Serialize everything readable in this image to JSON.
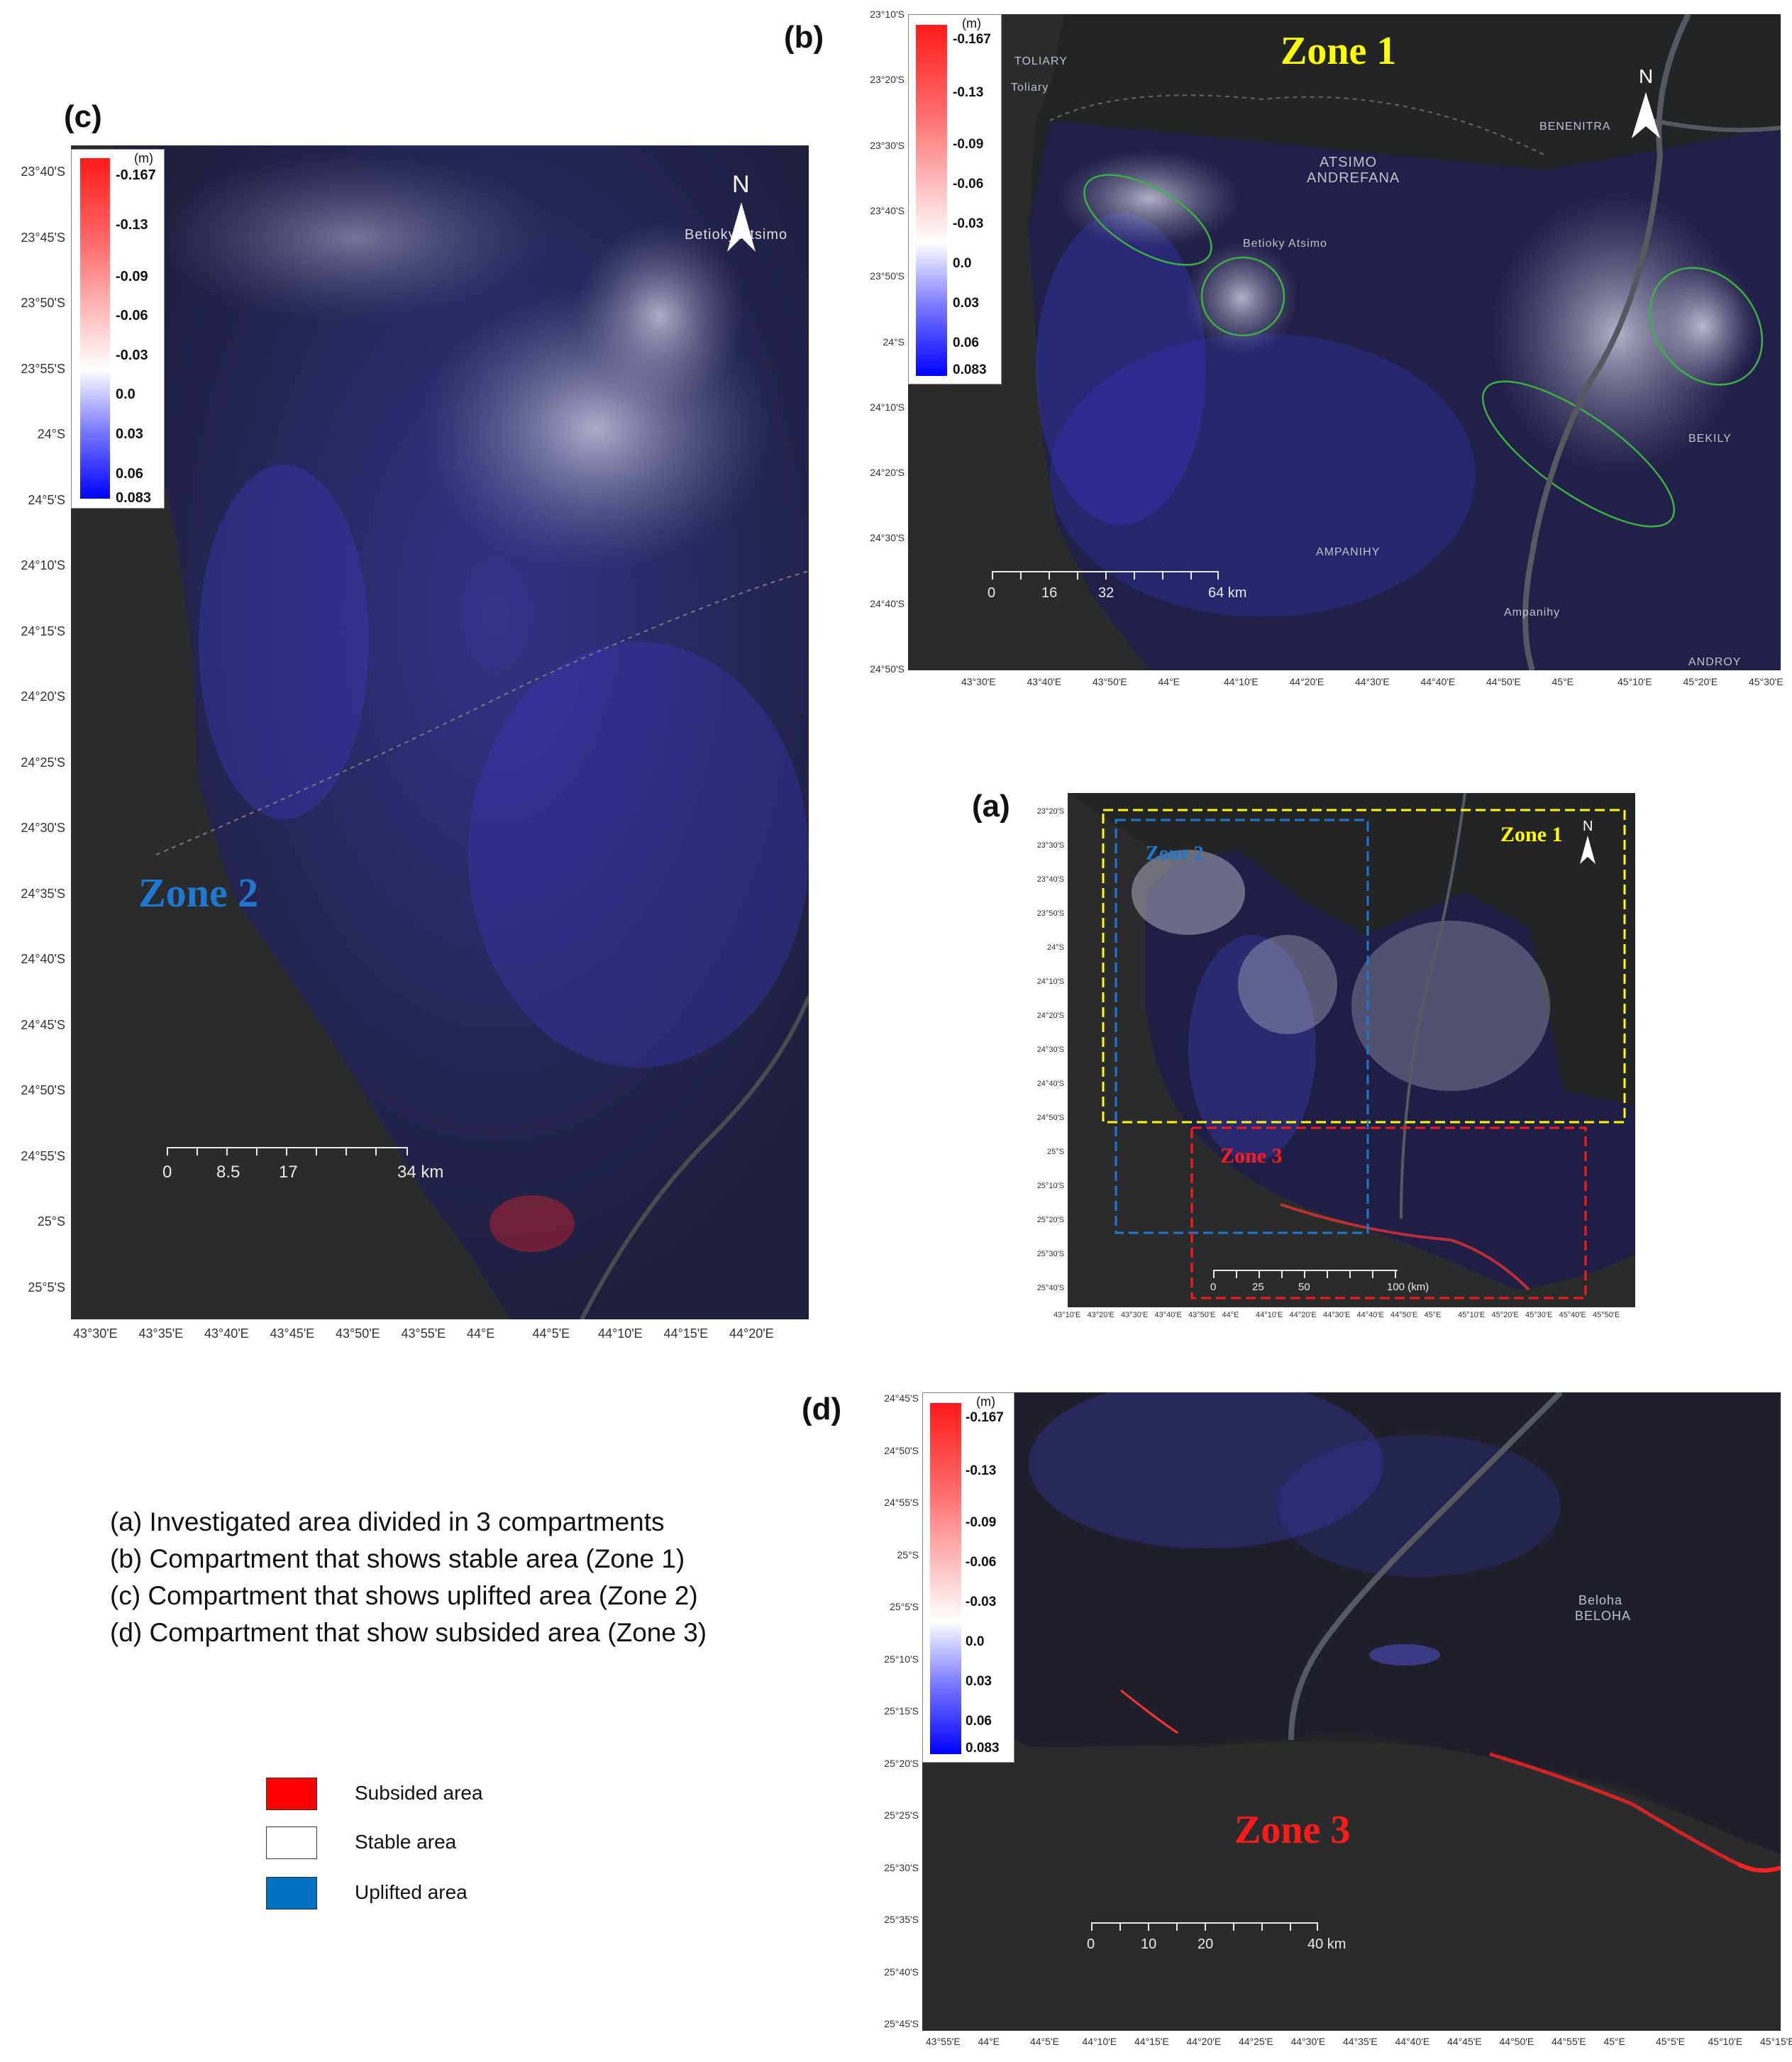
{
  "panels": {
    "c": {
      "letter": "(c)",
      "zone_label": "Zone 2",
      "lat_labels": [
        "23°40'S",
        "23°45'S",
        "23°50'S",
        "23°55'S",
        "24°S",
        "24°5'S",
        "24°10'S",
        "24°15'S",
        "24°20'S",
        "24°25'S",
        "24°30'S",
        "24°35'S",
        "24°40'S",
        "24°45'S",
        "24°50'S",
        "24°55'S",
        "25°S",
        "25°5'S"
      ],
      "lon_labels": [
        "43°30'E",
        "43°35'E",
        "43°40'E",
        "43°45'E",
        "43°50'E",
        "43°55'E",
        "44°E",
        "44°5'E",
        "44°10'E",
        "44°15'E",
        "44°20'E"
      ],
      "place_labels": [
        "Betioky Atsimo"
      ],
      "scale_labels": [
        "0",
        "8.5",
        "17",
        "34 km"
      ],
      "north": "N"
    },
    "b": {
      "letter": "(b)",
      "zone_label": "Zone 1",
      "lat_labels": [
        "23°10'S",
        "23°20'S",
        "23°30'S",
        "23°40'S",
        "23°50'S",
        "24°S",
        "24°10'S",
        "24°20'S",
        "24°30'S",
        "24°40'S",
        "24°50'S"
      ],
      "lon_labels": [
        "43°30'E",
        "43°40'E",
        "43°50'E",
        "44°E",
        "44°10'E",
        "44°20'E",
        "44°30'E",
        "44°40'E",
        "44°50'E",
        "45°E",
        "45°10'E",
        "45°20'E",
        "45°30'E"
      ],
      "place_labels": [
        "TOLIARY",
        "Toliary",
        "ATSIMO",
        "ANDREFANA",
        "Betioky Atsimo",
        "BENENITRA",
        "BEKILY",
        "AMPANIHY",
        "Ampanihy",
        "ANDROY"
      ],
      "scale_labels": [
        "0",
        "16",
        "32",
        "64 km"
      ],
      "north": "N"
    },
    "a": {
      "letter": "(a)",
      "zone_labels": [
        "Zone 1",
        "Zone 2",
        "Zone 3"
      ],
      "lat_labels": [
        "23°20'S",
        "23°30'S",
        "23°40'S",
        "23°50'S",
        "24°S",
        "24°10'S",
        "24°20'S",
        "24°30'S",
        "24°40'S",
        "24°50'S",
        "25°S",
        "25°10'S",
        "25°20'S",
        "25°30'S",
        "25°40'S"
      ],
      "lon_labels": [
        "43°10'E",
        "43°20'E",
        "43°30'E",
        "43°40'E",
        "43°50'E",
        "44°E",
        "44°10'E",
        "44°20'E",
        "44°30'E",
        "44°40'E",
        "44°50'E",
        "45°E",
        "45°10'E",
        "45°20'E",
        "45°30'E",
        "45°40'E",
        "45°50'E"
      ],
      "scale_labels": [
        "0",
        "25",
        "50",
        "100 (km)"
      ],
      "north": "N"
    },
    "d": {
      "letter": "(d)",
      "zone_label": "Zone 3",
      "lat_labels": [
        "24°45'S",
        "24°50'S",
        "24°55'S",
        "25°S",
        "25°5'S",
        "25°10'S",
        "25°15'S",
        "25°20'S",
        "25°25'S",
        "25°30'S",
        "25°35'S",
        "25°40'S",
        "25°45'S"
      ],
      "lon_labels": [
        "43°55'E",
        "44°E",
        "44°5'E",
        "44°10'E",
        "44°15'E",
        "44°20'E",
        "44°25'E",
        "44°30'E",
        "44°35'E",
        "44°40'E",
        "44°45'E",
        "44°50'E",
        "44°55'E",
        "45°E",
        "45°5'E",
        "45°10'E",
        "45°15'E"
      ],
      "place_labels": [
        "Beloha",
        "BELOHA"
      ],
      "scale_labels": [
        "0",
        "10",
        "20",
        "40 km"
      ]
    }
  },
  "colorbar": {
    "unit": "(m)",
    "values": [
      "-0.167",
      "-0.13",
      "-0.09",
      "-0.06",
      "-0.03",
      "0.0",
      "0.03",
      "0.06",
      "0.083"
    ]
  },
  "caption": [
    "(a) Investigated area divided in 3 compartments",
    "(b) Compartment that shows stable area (Zone 1)",
    "(c) Compartment that shows uplifted area (Zone 2)",
    "(d) Compartment that show subsided area (Zone 3)"
  ],
  "key": [
    {
      "label": "Subsided area",
      "color": "#ff0000"
    },
    {
      "label": "Stable area",
      "color": "#ffffff"
    },
    {
      "label": "Uplifted area",
      "color": "#0070c0"
    }
  ],
  "colors": {
    "zone1": "#ffff00",
    "zone2": "#1e78d0",
    "zone3": "#ff1a1a",
    "map_bg": "#232425",
    "sea": "#2a2b2d"
  }
}
